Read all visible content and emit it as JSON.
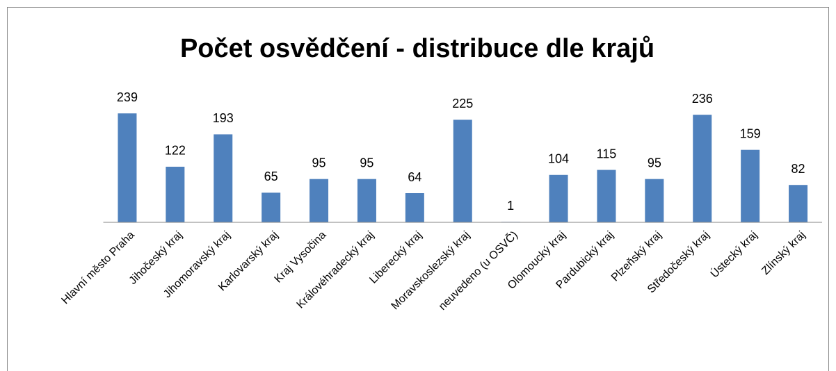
{
  "chart_data": {
    "type": "bar",
    "title": "Počet osvědčení - distribuce dle krajů",
    "categories": [
      "Hlavní město Praha",
      "Jihočeský kraj",
      "Jihomoravský kraj",
      "Karlovarský kraj",
      "Kraj Vysočina",
      "Královéhradecký kraj",
      "Liberecký kraj",
      "Moravskoslezský kraj",
      "neuvedeno (u OSVČ)",
      "Olomoucký kraj",
      "Pardubický kraj",
      "Plzeňský kraj",
      "Středočeský kraj",
      "Ústecký kraj",
      "Zlínský kraj"
    ],
    "values": [
      239,
      122,
      193,
      65,
      95,
      95,
      64,
      225,
      1,
      104,
      115,
      95,
      236,
      159,
      82
    ],
    "color": "#4f81bd",
    "ylim": [
      0,
      250
    ]
  }
}
